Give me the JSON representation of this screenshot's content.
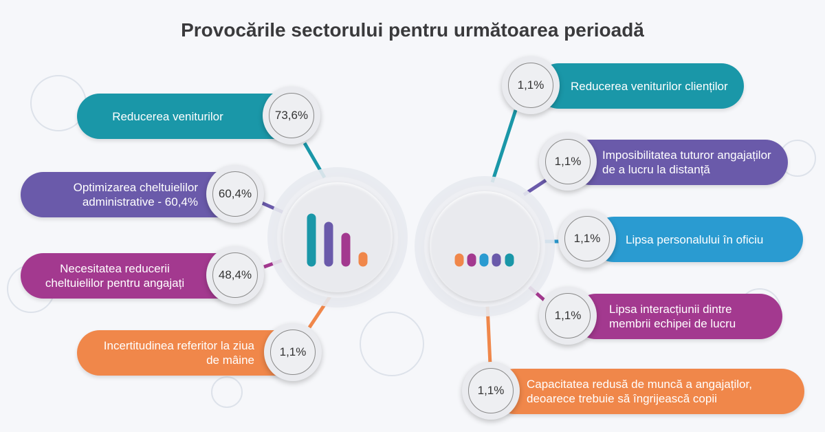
{
  "title": "Provocările sectorului pentru următoarea perioadă",
  "colors": {
    "teal": "#1a97a8",
    "purple": "#6a5aaa",
    "magenta": "#a3398f",
    "orange": "#f0874a",
    "blue": "#2a9bd1"
  },
  "left_items": [
    {
      "label": "Reducerea veniturilor",
      "value": "73,6%",
      "color": "teal"
    },
    {
      "label": "Optimizarea cheltuielilor administrative - 60,4%",
      "value": "60,4%",
      "color": "purple"
    },
    {
      "label": "Necesitatea reducerii cheltuielilor pentru angajați",
      "value": "48,4%",
      "color": "magenta"
    },
    {
      "label": "Incertitudinea referitor la ziua de mâine",
      "value": "1,1%",
      "color": "orange"
    }
  ],
  "right_items": [
    {
      "label": "Reducerea veniturilor clienților",
      "value": "1,1%",
      "color": "teal"
    },
    {
      "label": "Imposibilitatea tuturor angajaților de a lucru la distanță",
      "value": "1,1%",
      "color": "purple"
    },
    {
      "label": "Lipsa personalului în oficiu",
      "value": "1,1%",
      "color": "blue"
    },
    {
      "label": "Lipsa interacțiunii dintre membrii echipei de lucru",
      "value": "1,1%",
      "color": "magenta"
    },
    {
      "label": "Capacitatea redusă de muncă a angajaților, deoarece trebuie să îngrijească copii",
      "value": "1,1%",
      "color": "orange"
    }
  ],
  "hub_icons": {
    "left": "bar-chart-icon",
    "right": "dots-icon"
  }
}
